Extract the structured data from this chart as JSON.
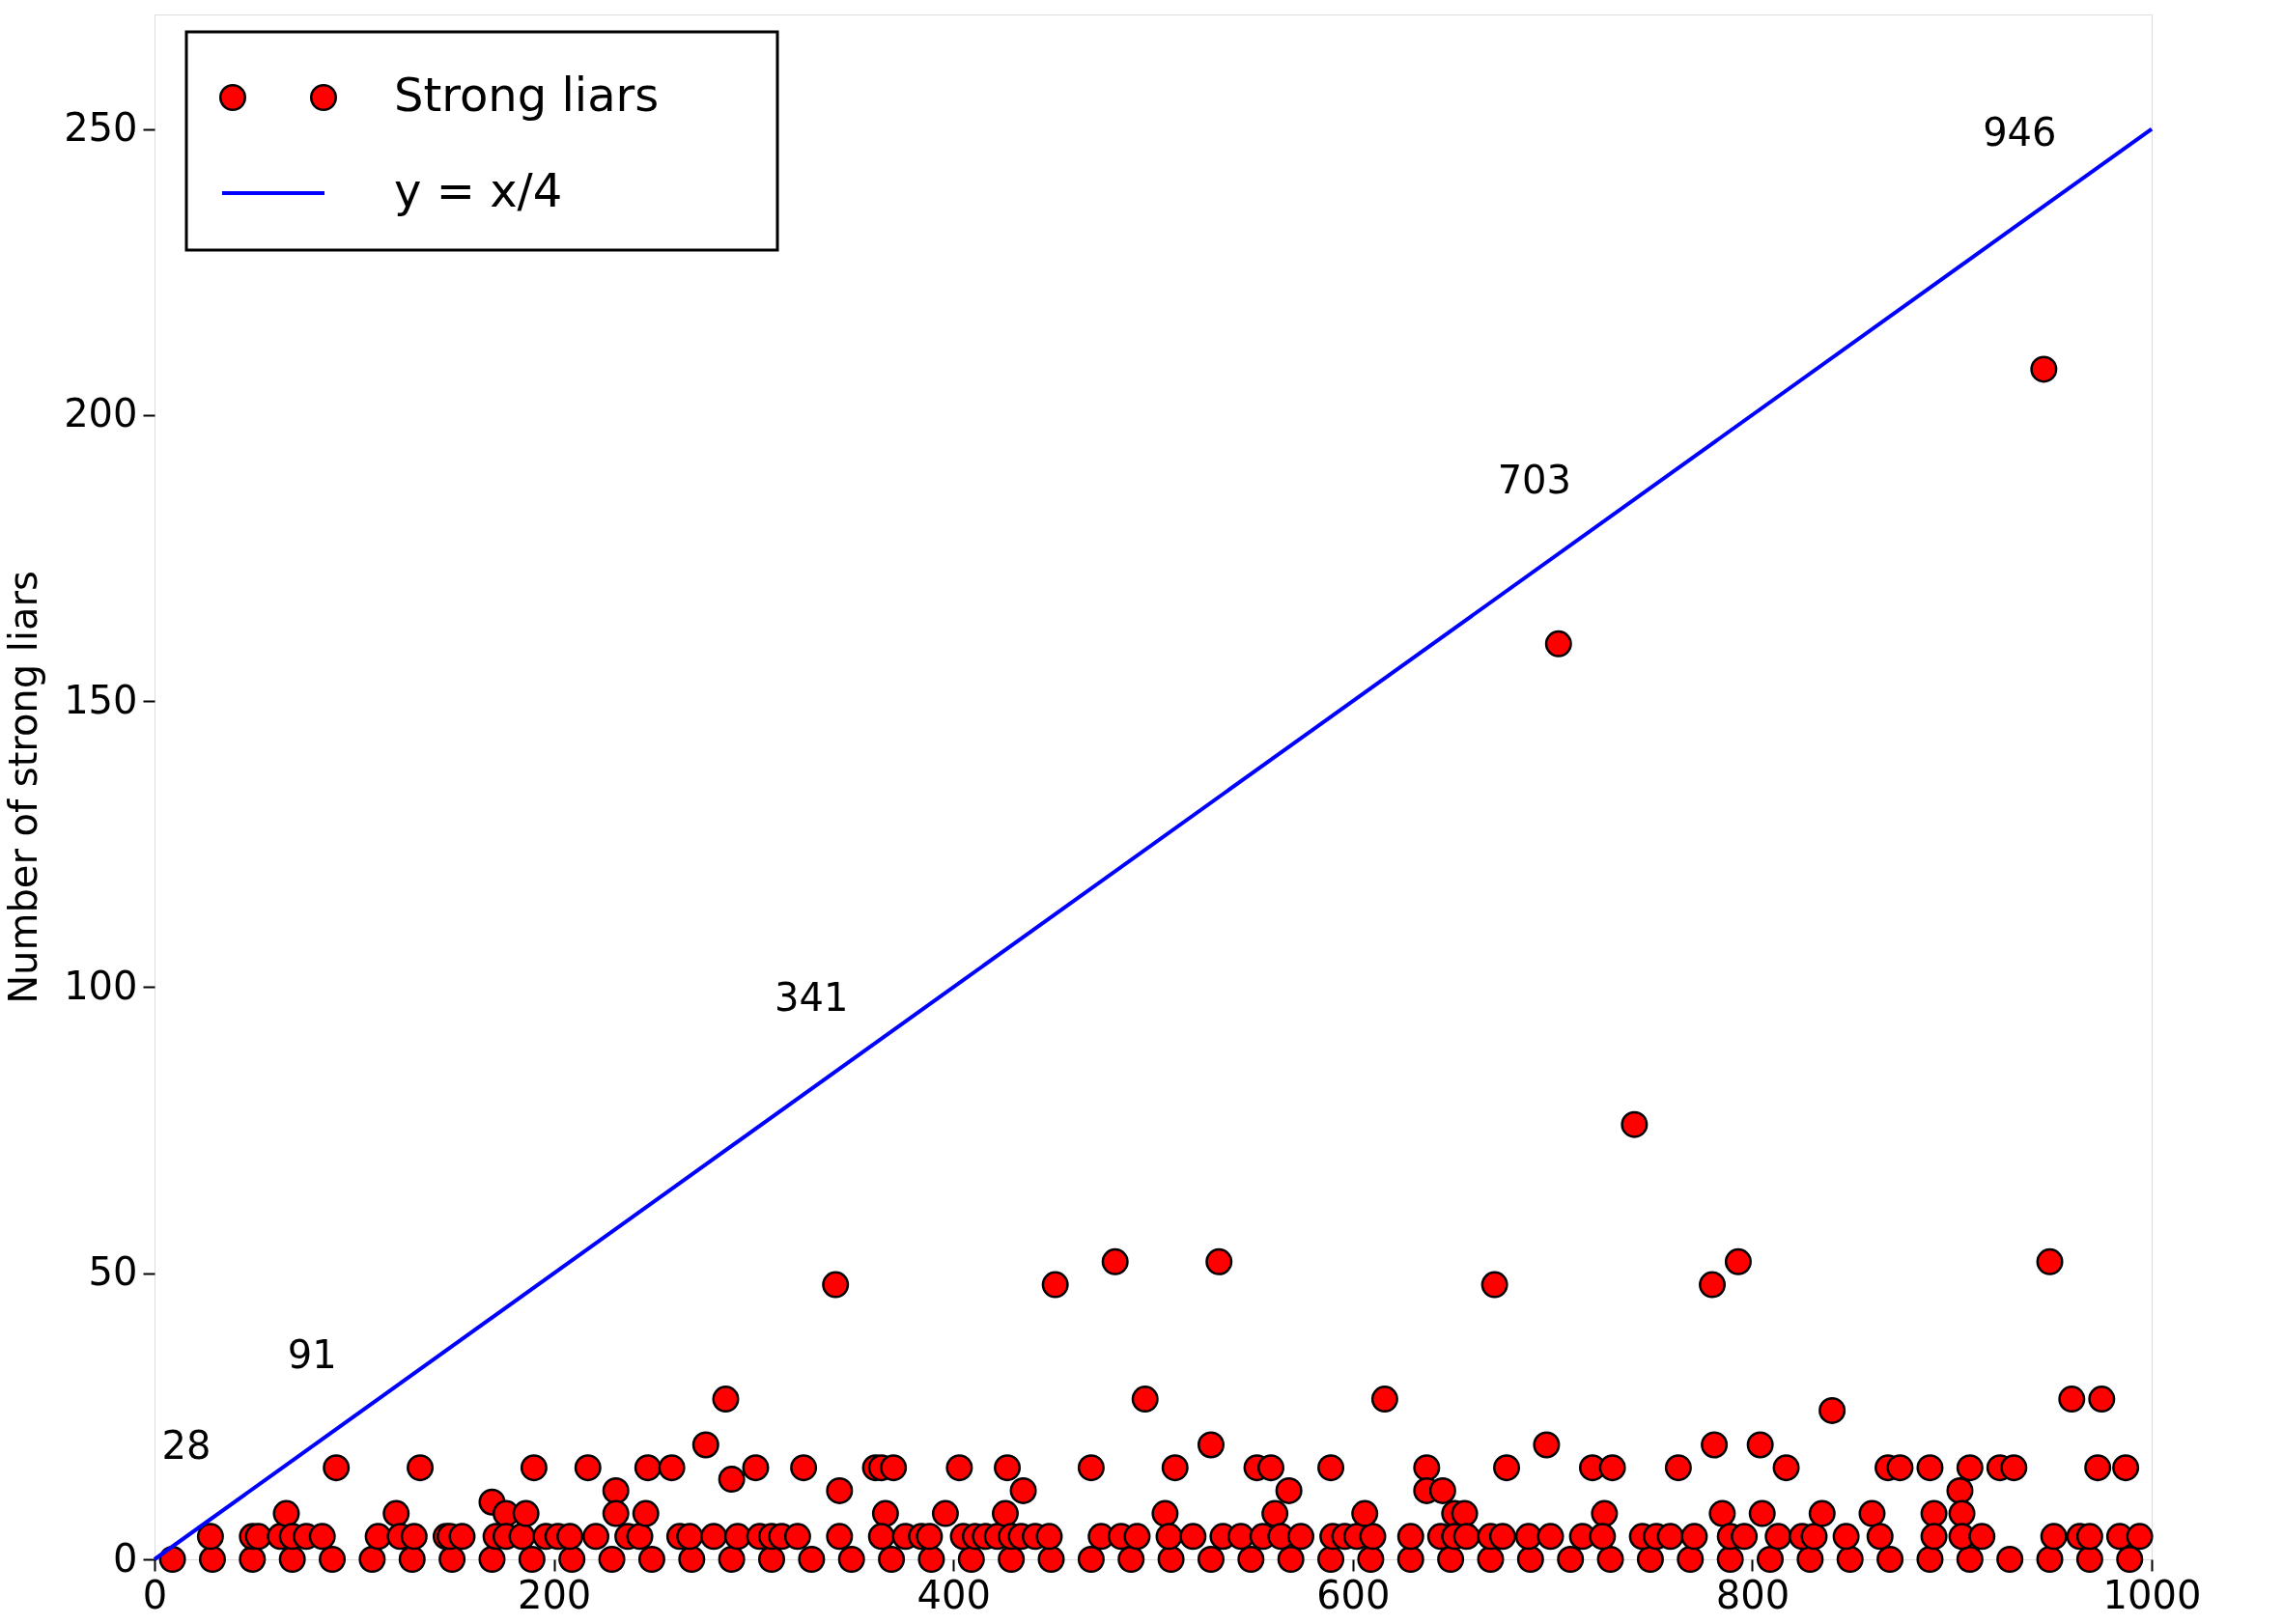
{
  "chart_data": {
    "type": "scatter",
    "ylabel": "Number of strong liars",
    "xlim": [
      0,
      1000
    ],
    "xticks": [
      0,
      200,
      400,
      600,
      800,
      1000
    ],
    "ylim": [
      0,
      270
    ],
    "yticks": [
      0,
      50,
      100,
      150,
      200,
      250
    ],
    "grid": false,
    "legend": "top left",
    "series": [
      {
        "name": "Strong liars",
        "type": "scatter",
        "color": "#ff0000",
        "marker": "circle",
        "x": [
          9,
          29,
          49,
          69,
          89,
          109,
          129,
          149,
          169,
          189,
          209,
          229,
          249,
          269,
          289,
          309,
          329,
          349,
          369,
          389,
          409,
          429,
          449,
          469,
          489,
          509,
          529,
          549,
          569,
          589,
          609,
          629,
          649,
          669,
          689,
          709,
          729,
          749,
          769,
          789,
          809,
          829,
          849,
          869,
          889,
          909,
          929,
          949,
          969,
          989,
          28,
          49,
          52,
          63,
          66,
          69,
          76,
          84,
          91,
          112,
          121,
          123,
          130,
          133,
          146,
          148,
          154,
          169,
          171,
          176,
          176,
          184,
          186,
          190,
          196,
          202,
          208,
          217,
          221,
          231,
          231,
          237,
          243,
          246,
          247,
          259,
          263,
          268,
          276,
          280,
          286,
          289,
          292,
          301,
          303,
          309,
          314,
          322,
          325,
          341,
          343,
          343,
          361,
          364,
          370,
          366,
          364,
          376,
          384,
          388,
          396,
          403,
          405,
          411,
          416,
          422,
          427,
          435,
          426,
          429,
          434,
          441,
          448,
          451,
          469,
          474,
          481,
          484,
          492,
          496,
          506,
          508,
          511,
          520,
          529,
          533,
          535,
          544,
          552,
          559,
          561,
          568,
          555,
          564,
          574,
          589,
          590,
          596,
          602,
          610,
          606,
          616,
          629,
          637,
          637,
          645,
          651,
          656,
          644,
          651,
          657,
          669,
          675,
          671,
          677,
          688,
          699,
          697,
          703,
          715,
          720,
          730,
          726,
          725,
          741,
          745,
          752,
          759,
          763,
          771,
          780,
          793,
          781,
          785,
          789,
          796,
          804,
          805,
          813,
          817,
          825,
          831,
          835,
          840,
          847,
          860,
          864,
          868,
          874,
          889,
          891,
          891,
          904,
          905,
          905,
          909,
          915,
          924,
          931,
          946,
          949,
          951,
          960,
          964,
          969,
          973,
          975,
          984,
          987,
          994
        ],
        "values": [
          0,
          0,
          0,
          0,
          0,
          0,
          0,
          0,
          0,
          0,
          0,
          0,
          0,
          0,
          0,
          0,
          0,
          0,
          0,
          0,
          0,
          0,
          0,
          0,
          0,
          0,
          0,
          0,
          0,
          0,
          0,
          0,
          0,
          0,
          0,
          0,
          0,
          0,
          0,
          0,
          0,
          0,
          0,
          0,
          0,
          0,
          0,
          0,
          0,
          0,
          4,
          4,
          4,
          4,
          8,
          4,
          4,
          4,
          16,
          4,
          8,
          4,
          4,
          16,
          4,
          4,
          4,
          10,
          4,
          8,
          4,
          4,
          8,
          16,
          4,
          4,
          4,
          16,
          4,
          12,
          8,
          4,
          4,
          8,
          16,
          16,
          4,
          4,
          20,
          4,
          28,
          14,
          4,
          16,
          4,
          4,
          4,
          4,
          16,
          48,
          12,
          4,
          16,
          16,
          16,
          8,
          4,
          4,
          4,
          4,
          8,
          16,
          4,
          4,
          4,
          4,
          16,
          12,
          8,
          4,
          4,
          4,
          4,
          48,
          16,
          4,
          52,
          4,
          4,
          28,
          8,
          4,
          16,
          4,
          20,
          52,
          4,
          4,
          16,
          16,
          8,
          12,
          4,
          4,
          4,
          16,
          4,
          4,
          4,
          4,
          8,
          28,
          4,
          16,
          12,
          12,
          8,
          8,
          4,
          4,
          4,
          4,
          4,
          48,
          16,
          4,
          4,
          20,
          160,
          4,
          16,
          16,
          8,
          4,
          76,
          4,
          4,
          4,
          16,
          4,
          48,
          52,
          20,
          8,
          4,
          4,
          20,
          8,
          4,
          16,
          4,
          4,
          8,
          26,
          4,
          8,
          4,
          16,
          16,
          16,
          8,
          4,
          12,
          8,
          4,
          16,
          4,
          16,
          16,
          208,
          52,
          4,
          28,
          4,
          4,
          16,
          28,
          4,
          16,
          4
        ]
      },
      {
        "name": "y = x/4",
        "type": "line",
        "color": "#0000ff",
        "line_style": "solid",
        "x": [
          0,
          1000
        ],
        "values": [
          0,
          250
        ]
      }
    ],
    "annotations": [
      {
        "text": "28",
        "x": 28,
        "y": 7
      },
      {
        "text": "91",
        "x": 91,
        "y": 22.75
      },
      {
        "text": "341",
        "x": 341,
        "y": 85.25
      },
      {
        "text": "703",
        "x": 703,
        "y": 175.75
      },
      {
        "text": "946",
        "x": 946,
        "y": 236.5
      }
    ]
  }
}
